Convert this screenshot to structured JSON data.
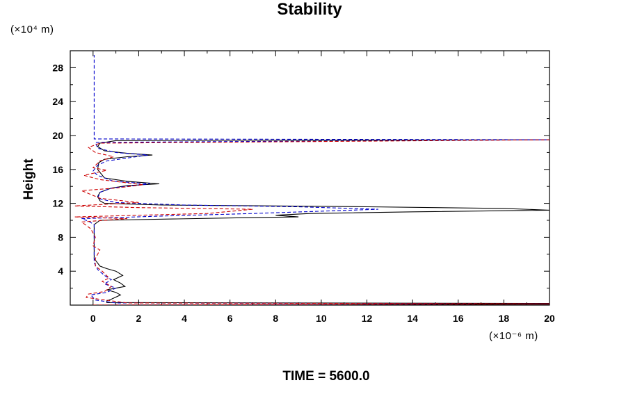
{
  "chart_data": {
    "type": "line",
    "title": "Stability",
    "ylabel": "Height",
    "yunit": "(×10⁴ m)",
    "xunit": "(×10⁻⁶ m)",
    "xlim": [
      -1,
      20
    ],
    "ylim": [
      0,
      30
    ],
    "xticks": [
      0,
      2,
      4,
      6,
      8,
      10,
      12,
      14,
      16,
      18,
      20
    ],
    "yticks": [
      4,
      8,
      12,
      16,
      20,
      24,
      28
    ],
    "grid": false,
    "series": [
      {
        "color": "#000000",
        "style": "solid",
        "points": [
          [
            0.5,
            0.0
          ],
          [
            20,
            0.1
          ],
          [
            20,
            0.2
          ],
          [
            0.6,
            0.3
          ],
          [
            0.6,
            0.5
          ],
          [
            0.8,
            0.7
          ],
          [
            1.2,
            1.2
          ],
          [
            1.0,
            1.5
          ],
          [
            0.6,
            1.8
          ],
          [
            1.0,
            2.0
          ],
          [
            1.4,
            2.2
          ],
          [
            1.2,
            2.6
          ],
          [
            0.9,
            3.0
          ],
          [
            1.3,
            3.5
          ],
          [
            1.0,
            4.0
          ],
          [
            0.6,
            4.3
          ],
          [
            0.3,
            4.6
          ],
          [
            0.05,
            5.5
          ],
          [
            0.05,
            9.5
          ],
          [
            0.2,
            9.8
          ],
          [
            0.3,
            10.0
          ],
          [
            6.5,
            10.3
          ],
          [
            9.0,
            10.4
          ],
          [
            8.0,
            10.6
          ],
          [
            9.5,
            10.8
          ],
          [
            14.0,
            11.0
          ],
          [
            20.0,
            11.2
          ],
          [
            18.0,
            11.4
          ],
          [
            12.0,
            11.6
          ],
          [
            8.0,
            11.7
          ],
          [
            3.0,
            11.8
          ],
          [
            0.5,
            12.0
          ],
          [
            0.3,
            12.3
          ],
          [
            0.2,
            12.8
          ],
          [
            0.3,
            13.3
          ],
          [
            0.8,
            13.8
          ],
          [
            1.5,
            14.1
          ],
          [
            2.9,
            14.3
          ],
          [
            1.5,
            14.6
          ],
          [
            0.5,
            15.0
          ],
          [
            0.2,
            16.0
          ],
          [
            0.25,
            16.8
          ],
          [
            0.5,
            17.2
          ],
          [
            1.5,
            17.5
          ],
          [
            2.6,
            17.7
          ],
          [
            1.5,
            17.9
          ],
          [
            0.5,
            18.2
          ],
          [
            0.2,
            18.7
          ],
          [
            0.3,
            19.1
          ],
          [
            1.0,
            19.4
          ],
          [
            20.0,
            19.5
          ]
        ]
      },
      {
        "color": "#0000cc",
        "style": "dashed",
        "points": [
          [
            0.5,
            0.0
          ],
          [
            20,
            0.15
          ],
          [
            1.0,
            0.25
          ],
          [
            0.1,
            0.6
          ],
          [
            -0.1,
            1.2
          ],
          [
            0.6,
            1.5
          ],
          [
            1.0,
            2.0
          ],
          [
            0.5,
            2.5
          ],
          [
            0.8,
            3.0
          ],
          [
            0.5,
            3.5
          ],
          [
            0.2,
            4.2
          ],
          [
            0.05,
            5.0
          ],
          [
            0.05,
            9.5
          ],
          [
            -0.2,
            9.9
          ],
          [
            -0.5,
            10.2
          ],
          [
            3.0,
            10.5
          ],
          [
            7.0,
            10.8
          ],
          [
            12.5,
            11.3
          ],
          [
            9.0,
            11.6
          ],
          [
            4.0,
            11.8
          ],
          [
            1.0,
            12.1
          ],
          [
            0.2,
            12.6
          ],
          [
            0.3,
            13.3
          ],
          [
            0.8,
            13.8
          ],
          [
            2.5,
            14.3
          ],
          [
            0.9,
            14.6
          ],
          [
            0.2,
            15.3
          ],
          [
            0.0,
            15.8
          ],
          [
            0.2,
            16.5
          ],
          [
            0.6,
            17.0
          ],
          [
            2.4,
            17.7
          ],
          [
            1.0,
            18.0
          ],
          [
            0.2,
            18.5
          ],
          [
            0.1,
            19.2
          ],
          [
            20.0,
            19.5
          ],
          [
            0.05,
            19.6
          ],
          [
            0.05,
            29.5
          ]
        ]
      },
      {
        "color": "#cc0000",
        "style": "dashed",
        "points": [
          [
            0.0,
            0.0
          ],
          [
            20,
            0.15
          ],
          [
            1.5,
            0.25
          ],
          [
            -0.3,
            0.9
          ],
          [
            -0.2,
            1.3
          ],
          [
            0.5,
            1.6
          ],
          [
            0.8,
            2.2
          ],
          [
            0.4,
            2.8
          ],
          [
            0.7,
            3.2
          ],
          [
            0.4,
            4.0
          ],
          [
            0.1,
            4.6
          ],
          [
            0.1,
            5.5
          ],
          [
            0.3,
            6.5
          ],
          [
            0.0,
            7.0
          ],
          [
            0.1,
            8.0
          ],
          [
            -0.1,
            9.0
          ],
          [
            -0.5,
            9.8
          ],
          [
            1.5,
            10.2
          ],
          [
            -0.8,
            10.4
          ],
          [
            5.0,
            10.8
          ],
          [
            7.0,
            11.3
          ],
          [
            2.0,
            11.5
          ],
          [
            -0.8,
            11.7
          ],
          [
            2.0,
            12.1
          ],
          [
            0.3,
            12.6
          ],
          [
            -0.5,
            13.5
          ],
          [
            1.0,
            13.8
          ],
          [
            2.2,
            14.2
          ],
          [
            0.3,
            14.8
          ],
          [
            -0.4,
            15.3
          ],
          [
            0.6,
            15.9
          ],
          [
            0.0,
            16.2
          ],
          [
            0.3,
            17.0
          ],
          [
            0.9,
            17.5
          ],
          [
            0.1,
            18.0
          ],
          [
            -0.2,
            18.6
          ],
          [
            0.3,
            19.1
          ],
          [
            20.0,
            19.5
          ]
        ]
      }
    ]
  },
  "footer": "TIME = 5600.0"
}
